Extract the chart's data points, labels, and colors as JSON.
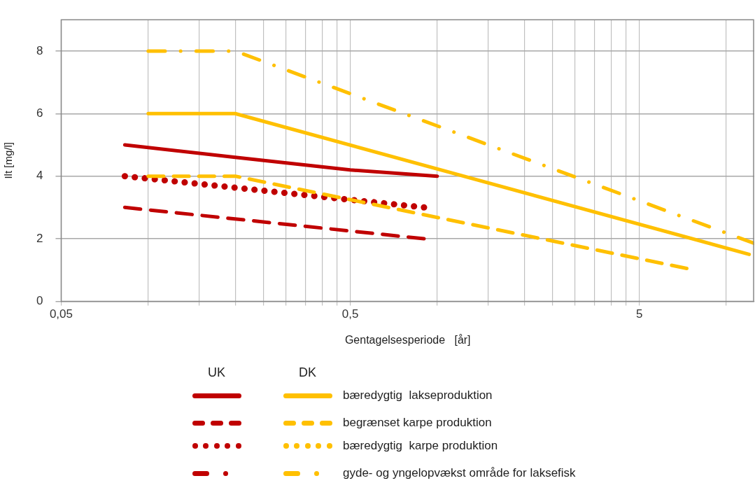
{
  "chart_data": {
    "type": "line",
    "xlabel": "Gentagelsesperiode   [år]",
    "ylabel": "Ilt [mg/l]",
    "log": "x",
    "xlim": [
      0.05,
      12.5
    ],
    "ylim": [
      0,
      9
    ],
    "xticks": [
      {
        "value": 0.05,
        "label": "0,05"
      },
      {
        "value": 0.1,
        "label": null
      },
      {
        "value": 0.15,
        "label": null
      },
      {
        "value": 0.2,
        "label": null
      },
      {
        "value": 0.25,
        "label": null
      },
      {
        "value": 0.3,
        "label": null
      },
      {
        "value": 0.35,
        "label": null
      },
      {
        "value": 0.4,
        "label": null
      },
      {
        "value": 0.45,
        "label": null
      },
      {
        "value": 0.5,
        "label": "0,5"
      },
      {
        "value": 1,
        "label": null
      },
      {
        "value": 1.5,
        "label": null
      },
      {
        "value": 2,
        "label": null
      },
      {
        "value": 2.5,
        "label": null
      },
      {
        "value": 3,
        "label": null
      },
      {
        "value": 3.5,
        "label": null
      },
      {
        "value": 4,
        "label": null
      },
      {
        "value": 4.5,
        "label": null
      },
      {
        "value": 5,
        "label": "5"
      },
      {
        "value": 10,
        "label": null
      }
    ],
    "yticks": [
      0,
      2,
      4,
      6,
      8
    ],
    "grid": true,
    "legend": "bottom",
    "marker": "none",
    "annotations": [
      "UK",
      "DK"
    ],
    "series": [
      {
        "name": "bæredygtig  lakseproduktion",
        "color": "#ffc000",
        "line_style": "solid",
        "x": [
          0.1,
          0.2,
          12
        ],
        "values": [
          6,
          6,
          1.5
        ]
      },
      {
        "name": "begrænset karpe produktion",
        "color": "#ffc000",
        "line_style": "dashed",
        "x": [
          0.1,
          0.2,
          7.3
        ],
        "values": [
          4,
          4,
          1.05
        ]
      },
      {
        "name": "bæredygtig  karpe produktion",
        "color": "#ffc000",
        "line_style": "dotted"
      },
      {
        "name": "gyde- og yngelopvækst område for laksefisk",
        "color": "#ffc000",
        "line_style": "dashdot",
        "x": [
          0.1,
          0.2,
          12.5
        ],
        "values": [
          8,
          8,
          1.85
        ]
      },
      {
        "color": "#c00000",
        "line_style": "solid",
        "x": [
          0.083,
          0.2,
          0.5,
          1
        ],
        "values": [
          5,
          4.6,
          4.2,
          4
        ]
      },
      {
        "color": "#c00000",
        "line_style": "dashed",
        "x": [
          0.083,
          0.9
        ],
        "values": [
          3,
          2
        ]
      },
      {
        "color": "#c00000",
        "line_style": "dotted",
        "x": [
          0.083,
          0.9
        ],
        "values": [
          4,
          3
        ]
      },
      {
        "color": "#c00000",
        "line_style": "dashdot"
      }
    ]
  }
}
